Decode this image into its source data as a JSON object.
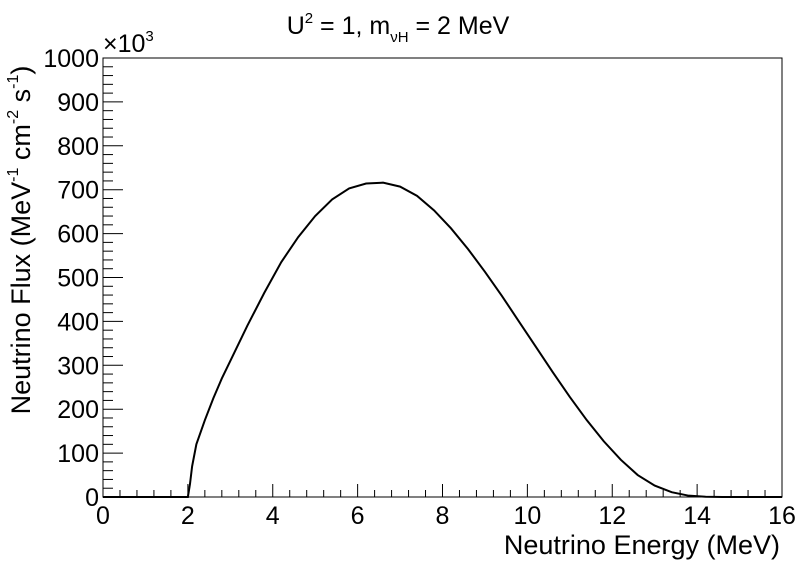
{
  "title": {
    "u_symbol": "U",
    "u_exp": "2",
    "eq_text": " = 1, m",
    "mass_sub": "νH",
    "mass_rest": " = 2 MeV"
  },
  "y_multiplier": {
    "base": "×10",
    "exp": "3"
  },
  "axes": {
    "xlabel": "Neutrino Energy (MeV)",
    "ylabel_parts": {
      "a": "Neutrino Flux (MeV",
      "a_exp": "-1",
      "b": " cm",
      "b_exp": "-2",
      "c": " s",
      "c_exp": "-1",
      "d": ")"
    }
  },
  "chart_data": {
    "type": "line",
    "title": "U² = 1, m_νH = 2 MeV",
    "xlabel": "Neutrino Energy (MeV)",
    "ylabel": "Neutrino Flux (MeV⁻¹ cm⁻² s⁻¹)",
    "y_scale_note": "×10³",
    "xlim": [
      0,
      16
    ],
    "ylim": [
      0,
      1000
    ],
    "x_ticks": [
      0,
      2,
      4,
      6,
      8,
      10,
      12,
      14,
      16
    ],
    "y_ticks": [
      0,
      100,
      200,
      300,
      400,
      500,
      600,
      700,
      800,
      900,
      1000
    ],
    "grid": false,
    "series": [
      {
        "x": [
          0,
          1,
          2.0,
          2.05,
          2.1,
          2.2,
          2.4,
          2.6,
          2.8,
          3.0,
          3.4,
          3.8,
          4.2,
          4.6,
          5.0,
          5.4,
          5.8,
          6.2,
          6.6,
          7.0,
          7.4,
          7.8,
          8.2,
          8.6,
          9.0,
          9.4,
          9.8,
          10.2,
          10.6,
          11.0,
          11.4,
          11.8,
          12.2,
          12.6,
          13.0,
          13.4,
          13.8,
          14.2,
          14.6,
          15.0,
          15.4,
          15.8,
          16.0
        ],
        "y": [
          0,
          0,
          0,
          30,
          70,
          120,
          175,
          225,
          270,
          310,
          390,
          465,
          535,
          592,
          640,
          678,
          703,
          714,
          716,
          707,
          686,
          653,
          612,
          565,
          513,
          458,
          400,
          342,
          284,
          228,
          175,
          127,
          85,
          50,
          26,
          11,
          3,
          0.5,
          0,
          0,
          0,
          0,
          0
        ]
      }
    ]
  }
}
